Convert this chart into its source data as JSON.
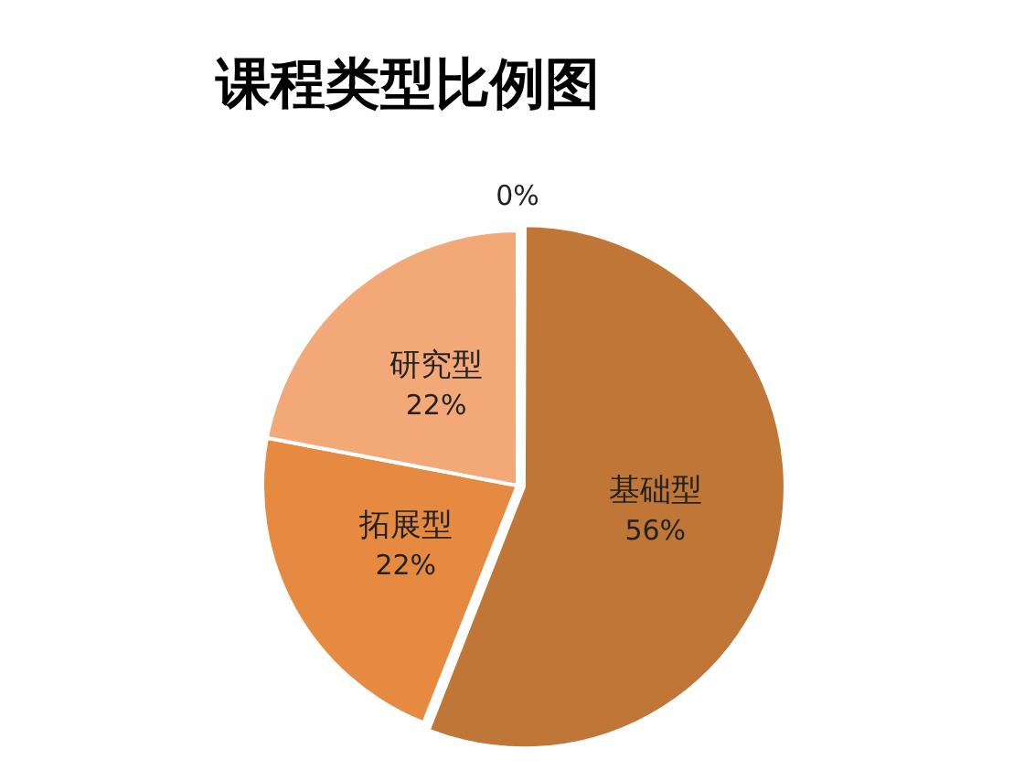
{
  "chart_data": {
    "type": "pie",
    "title": "课程类型比例图",
    "categories": [
      "基础型",
      "拓展型",
      "研究型",
      null
    ],
    "values": [
      56,
      22,
      22,
      0
    ],
    "colors": [
      "#c07636",
      "#e68a42",
      "#f2a877",
      "#f5c9a6"
    ],
    "value_labels": [
      "56%",
      "22%",
      "22%",
      "0%"
    ]
  }
}
